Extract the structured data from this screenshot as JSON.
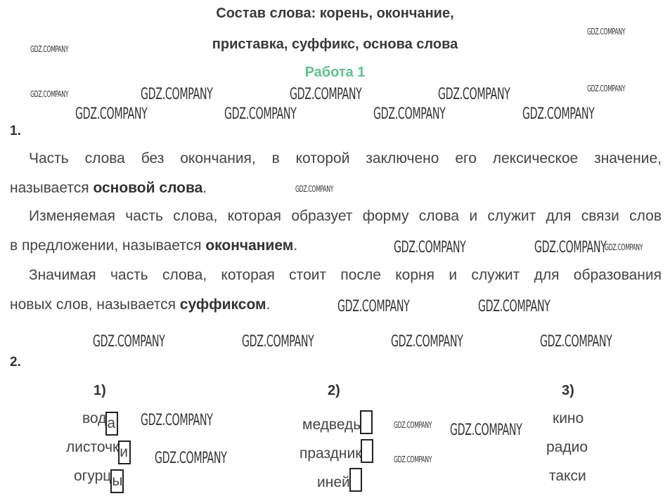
{
  "title_line1": "Состав слова: корень, окончание,",
  "title_line2": "приставка, суффикс, основа слова",
  "subtitle": "Работа 1",
  "task1": {
    "number": "1.",
    "p1_line1": "Часть слова без окончания, в которой заключено его лексическое значение,",
    "p1_line2_pre": "называется ",
    "p1_term": "основой слова",
    "p1_end": ".",
    "p2_line1": "Изменяемая часть слова, которая образует форму слова и служит для связи слов",
    "p2_line2_pre": "в предложении, называется ",
    "p2_term": "окончанием",
    "p2_end": ".",
    "p3_line1": "Значимая часть слова, которая стоит после корня и служит для образования",
    "p3_line2_pre": "новых слов, называется ",
    "p3_term": "суффиксом",
    "p3_end": "."
  },
  "task2": {
    "number": "2.",
    "columns": [
      {
        "label": "1)",
        "words": [
          {
            "stem": "вод",
            "ending": "а"
          },
          {
            "stem": "листочк",
            "ending": "и"
          },
          {
            "stem": "огурц",
            "ending": "ы"
          }
        ]
      },
      {
        "label": "2)",
        "words": [
          {
            "stem": "медведь",
            "ending": ""
          },
          {
            "stem": "праздник",
            "ending": ""
          },
          {
            "stem": "иней",
            "ending": ""
          }
        ]
      },
      {
        "label": "3)",
        "words": [
          {
            "stem": "кино"
          },
          {
            "stem": "радио"
          },
          {
            "stem": "такси"
          }
        ]
      }
    ]
  },
  "watermark": "GDZ.COMPANY",
  "colors": {
    "accent": "#5ec28d",
    "text": "#444444",
    "heading": "#3a3a3a"
  }
}
